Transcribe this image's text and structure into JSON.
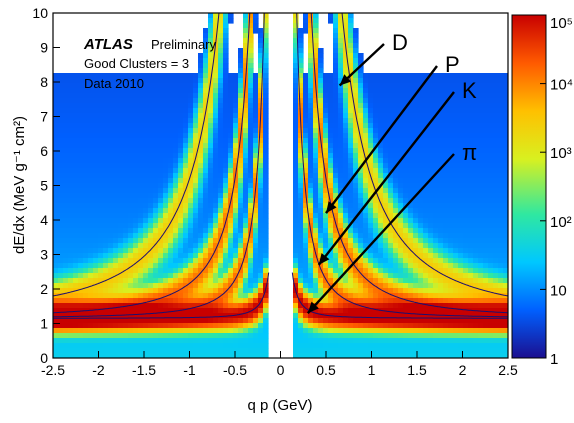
{
  "chart_data": {
    "type": "heatmap",
    "title": "",
    "xlabel": "q p (GeV)",
    "ylabel": "dE/dx (MeV g⁻¹ cm²)",
    "xlim": [
      -2.5,
      2.5
    ],
    "ylim": [
      0,
      10
    ],
    "x_ticks": [
      "-2.5",
      "-2",
      "-1.5",
      "-1",
      "-0.5",
      "0",
      "0.5",
      "1",
      "1.5",
      "2",
      "2.5"
    ],
    "y_ticks": [
      "0",
      "1",
      "2",
      "3",
      "4",
      "5",
      "6",
      "7",
      "8",
      "9",
      "10"
    ],
    "grid": false,
    "colorbar": {
      "scale": "log",
      "range": [
        1,
        100000
      ],
      "tick_labels": [
        "1",
        "10",
        "10²",
        "10³",
        "10⁴",
        "10⁵"
      ],
      "colors": [
        "#1b0f8f",
        "#0060ff",
        "#00c8ff",
        "#30e8a0",
        "#d8f020",
        "#ffc000",
        "#ff5a00",
        "#c80000"
      ]
    },
    "legend": {
      "brand": "ATLAS",
      "status": "Preliminary",
      "lines": [
        "Good Clusters = 3",
        "Data 2010"
      ]
    },
    "annotations": [
      {
        "label": "D",
        "point": [
          0.65,
          7.9
        ]
      },
      {
        "label": "P",
        "point": [
          0.5,
          4.2
        ]
      },
      {
        "label": "K",
        "point": [
          0.42,
          2.7
        ]
      },
      {
        "label": "π",
        "point": [
          0.3,
          1.3
        ]
      }
    ],
    "bands": [
      {
        "name": "π",
        "mass": 0.1396
      },
      {
        "name": "K",
        "mass": 0.4937
      },
      {
        "name": "P",
        "mass": 0.9383
      },
      {
        "name": "D",
        "mass": 1.8756
      }
    ]
  }
}
